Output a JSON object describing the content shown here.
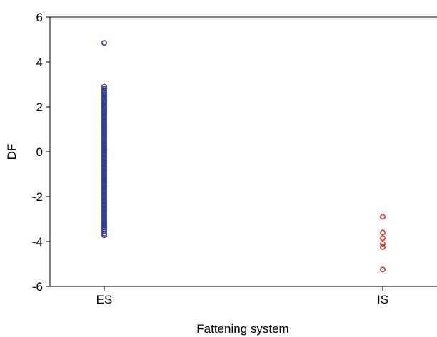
{
  "chart_data": {
    "type": "scatter",
    "title": "",
    "xlabel": "Fattening system",
    "ylabel": "DF",
    "categories": [
      "ES",
      "IS"
    ],
    "ylim": [
      -6,
      6
    ],
    "yticks": [
      6,
      4,
      2,
      0,
      -2,
      -4,
      -6
    ],
    "ytick_labels": [
      "6",
      "4",
      "2",
      "0",
      "-2",
      "-4",
      "-6"
    ],
    "grid": false,
    "legend": "none",
    "series": [
      {
        "category": "ES",
        "color": "#2b3a9e",
        "marker": "open-circle",
        "values": [
          4.85,
          2.9,
          2.8,
          2.7,
          2.62,
          2.55,
          2.48,
          2.4,
          2.32,
          2.25,
          2.18,
          2.1,
          2.02,
          1.95,
          1.88,
          1.8,
          1.72,
          1.65,
          1.57,
          1.5,
          1.42,
          1.35,
          1.27,
          1.2,
          1.12,
          1.05,
          0.97,
          0.9,
          0.82,
          0.75,
          0.67,
          0.6,
          0.52,
          0.45,
          0.37,
          0.3,
          0.22,
          0.15,
          0.07,
          0.0,
          -0.08,
          -0.15,
          -0.23,
          -0.3,
          -0.38,
          -0.45,
          -0.53,
          -0.6,
          -0.68,
          -0.75,
          -0.83,
          -0.9,
          -0.98,
          -1.05,
          -1.13,
          -1.2,
          -1.28,
          -1.35,
          -1.43,
          -1.5,
          -1.58,
          -1.65,
          -1.73,
          -1.8,
          -1.88,
          -1.95,
          -2.03,
          -2.1,
          -2.18,
          -2.25,
          -2.33,
          -2.4,
          -2.48,
          -2.55,
          -2.63,
          -2.7,
          -2.78,
          -2.85,
          -2.93,
          -3.0,
          -3.08,
          -3.15,
          -3.23,
          -3.3,
          -3.38,
          -3.45,
          -3.55,
          -3.65,
          -3.72
        ]
      },
      {
        "category": "IS",
        "color": "#e0342c",
        "marker": "open-circle",
        "values": [
          -2.9,
          -3.6,
          -3.85,
          -4.1,
          -4.25,
          -5.25
        ]
      }
    ]
  }
}
